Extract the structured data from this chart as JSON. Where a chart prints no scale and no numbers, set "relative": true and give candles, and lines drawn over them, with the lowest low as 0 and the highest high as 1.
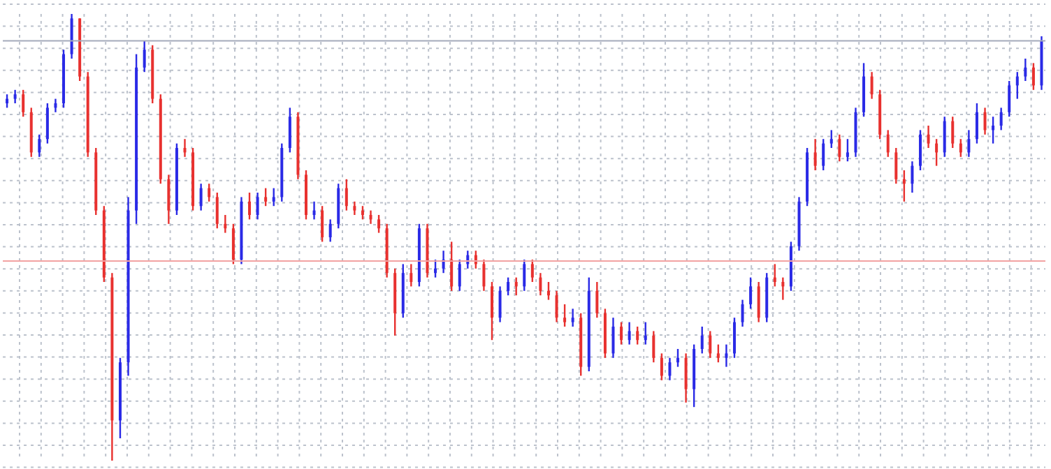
{
  "chart_data": {
    "type": "candlestick",
    "relative": true,
    "grid": true,
    "categories": [
      null,
      null,
      null,
      null,
      null,
      null,
      null,
      null,
      null,
      null,
      null,
      null,
      null,
      null,
      null,
      null,
      null,
      null,
      null,
      null,
      null,
      null,
      null,
      null,
      null,
      null,
      null,
      null,
      null,
      null,
      null,
      null,
      null,
      null,
      null,
      null,
      null,
      null,
      null,
      null,
      null,
      null,
      null,
      null,
      null,
      null,
      null,
      null,
      null,
      null,
      null,
      null,
      null,
      null,
      null,
      null,
      null,
      null,
      null,
      null,
      null,
      null,
      null,
      null,
      null,
      null,
      null,
      null,
      null,
      null,
      null,
      null,
      null,
      null,
      null,
      null,
      null,
      null,
      null,
      null,
      null,
      null,
      null,
      null,
      null,
      null,
      null,
      null,
      null,
      null,
      null,
      null,
      null,
      null,
      null,
      null,
      null,
      null,
      null,
      null,
      null,
      null,
      null,
      null,
      null,
      null,
      null,
      null,
      null,
      null,
      null,
      null,
      null,
      null,
      null,
      null,
      null,
      null,
      null,
      null,
      null,
      null,
      null,
      null,
      null,
      null,
      null,
      null,
      null
    ],
    "ohlc": [
      [
        0.8,
        0.82,
        0.79,
        0.81
      ],
      [
        0.81,
        0.83,
        0.8,
        0.82
      ],
      [
        0.82,
        0.83,
        0.77,
        0.78
      ],
      [
        0.78,
        0.79,
        0.68,
        0.69
      ],
      [
        0.69,
        0.73,
        0.68,
        0.72
      ],
      [
        0.72,
        0.8,
        0.71,
        0.79
      ],
      [
        0.79,
        0.81,
        0.78,
        0.8
      ],
      [
        0.8,
        0.92,
        0.79,
        0.91
      ],
      [
        0.91,
        1,
        0.9,
        0.99
      ],
      [
        0.99,
        0.99,
        0.85,
        0.86
      ],
      [
        0.86,
        0.87,
        0.68,
        0.69
      ],
      [
        0.69,
        0.7,
        0.55,
        0.56
      ],
      [
        0.56,
        0.57,
        0.4,
        0.41
      ],
      [
        0.41,
        0.42,
        0,
        0.09
      ],
      [
        0.09,
        0.23,
        0.05,
        0.22
      ],
      [
        0.22,
        0.59,
        0.19,
        0.56
      ],
      [
        0.56,
        0.91,
        0.53,
        0.88
      ],
      [
        0.88,
        0.94,
        0.87,
        0.92
      ],
      [
        0.92,
        0.93,
        0.8,
        0.81
      ],
      [
        0.81,
        0.82,
        0.62,
        0.63
      ],
      [
        0.63,
        0.64,
        0.53,
        0.56
      ],
      [
        0.56,
        0.71,
        0.55,
        0.7
      ],
      [
        0.7,
        0.72,
        0.68,
        0.69
      ],
      [
        0.69,
        0.7,
        0.56,
        0.57
      ],
      [
        0.57,
        0.62,
        0.56,
        0.61
      ],
      [
        0.61,
        0.62,
        0.58,
        0.59
      ],
      [
        0.59,
        0.6,
        0.52,
        0.53
      ],
      [
        0.53,
        0.55,
        0.51,
        0.52
      ],
      [
        0.52,
        0.53,
        0.44,
        0.45
      ],
      [
        0.45,
        0.59,
        0.44,
        0.58
      ],
      [
        0.58,
        0.6,
        0.54,
        0.55
      ],
      [
        0.55,
        0.6,
        0.54,
        0.59
      ],
      [
        0.59,
        0.61,
        0.57,
        0.58
      ],
      [
        0.58,
        0.61,
        0.57,
        0.59
      ],
      [
        0.59,
        0.71,
        0.58,
        0.7
      ],
      [
        0.7,
        0.79,
        0.69,
        0.77
      ],
      [
        0.77,
        0.78,
        0.63,
        0.64
      ],
      [
        0.64,
        0.65,
        0.54,
        0.55
      ],
      [
        0.55,
        0.58,
        0.54,
        0.56
      ],
      [
        0.56,
        0.57,
        0.49,
        0.5
      ],
      [
        0.5,
        0.54,
        0.49,
        0.53
      ],
      [
        0.53,
        0.62,
        0.52,
        0.61
      ],
      [
        0.61,
        0.63,
        0.56,
        0.57
      ],
      [
        0.57,
        0.58,
        0.55,
        0.56
      ],
      [
        0.56,
        0.57,
        0.54,
        0.55
      ],
      [
        0.55,
        0.56,
        0.53,
        0.54
      ],
      [
        0.54,
        0.55,
        0.51,
        0.52
      ],
      [
        0.52,
        0.53,
        0.41,
        0.42
      ],
      [
        0.42,
        0.43,
        0.28,
        0.33
      ],
      [
        0.33,
        0.44,
        0.32,
        0.42
      ],
      [
        0.42,
        0.44,
        0.39,
        0.4
      ],
      [
        0.4,
        0.53,
        0.39,
        0.52
      ],
      [
        0.52,
        0.53,
        0.41,
        0.42
      ],
      [
        0.42,
        0.45,
        0.41,
        0.43
      ],
      [
        0.43,
        0.47,
        0.42,
        0.45
      ],
      [
        0.45,
        0.49,
        0.38,
        0.39
      ],
      [
        0.39,
        0.45,
        0.38,
        0.44
      ],
      [
        0.44,
        0.47,
        0.43,
        0.46
      ],
      [
        0.46,
        0.47,
        0.43,
        0.44
      ],
      [
        0.44,
        0.45,
        0.38,
        0.39
      ],
      [
        0.39,
        0.4,
        0.27,
        0.32
      ],
      [
        0.32,
        0.39,
        0.31,
        0.38
      ],
      [
        0.38,
        0.41,
        0.37,
        0.4
      ],
      [
        0.4,
        0.41,
        0.37,
        0.39
      ],
      [
        0.39,
        0.45,
        0.38,
        0.44
      ],
      [
        0.44,
        0.45,
        0.4,
        0.41
      ],
      [
        0.41,
        0.42,
        0.37,
        0.38
      ],
      [
        0.38,
        0.4,
        0.36,
        0.37
      ],
      [
        0.37,
        0.38,
        0.31,
        0.32
      ],
      [
        0.32,
        0.35,
        0.3,
        0.31
      ],
      [
        0.31,
        0.34,
        0.3,
        0.32
      ],
      [
        0.32,
        0.33,
        0.19,
        0.21
      ],
      [
        0.21,
        0.41,
        0.2,
        0.38
      ],
      [
        0.38,
        0.4,
        0.32,
        0.33
      ],
      [
        0.33,
        0.34,
        0.23,
        0.24
      ],
      [
        0.24,
        0.32,
        0.23,
        0.3
      ],
      [
        0.3,
        0.31,
        0.26,
        0.27
      ],
      [
        0.27,
        0.31,
        0.26,
        0.29
      ],
      [
        0.29,
        0.3,
        0.26,
        0.27
      ],
      [
        0.27,
        0.31,
        0.26,
        0.28
      ],
      [
        0.28,
        0.29,
        0.22,
        0.23
      ],
      [
        0.23,
        0.24,
        0.18,
        0.19
      ],
      [
        0.19,
        0.23,
        0.18,
        0.22
      ],
      [
        0.22,
        0.25,
        0.21,
        0.23
      ],
      [
        0.23,
        0.24,
        0.13,
        0.16
      ],
      [
        0.16,
        0.26,
        0.12,
        0.25
      ],
      [
        0.25,
        0.3,
        0.24,
        0.28
      ],
      [
        0.28,
        0.29,
        0.23,
        0.24
      ],
      [
        0.24,
        0.26,
        0.22,
        0.23
      ],
      [
        0.23,
        0.26,
        0.21,
        0.24
      ],
      [
        0.24,
        0.32,
        0.23,
        0.31
      ],
      [
        0.31,
        0.36,
        0.3,
        0.35
      ],
      [
        0.35,
        0.41,
        0.34,
        0.39
      ],
      [
        0.39,
        0.4,
        0.31,
        0.32
      ],
      [
        0.32,
        0.42,
        0.31,
        0.41
      ],
      [
        0.41,
        0.44,
        0.39,
        0.4
      ],
      [
        0.4,
        0.41,
        0.36,
        0.39
      ],
      [
        0.39,
        0.49,
        0.38,
        0.48
      ],
      [
        0.48,
        0.59,
        0.47,
        0.58
      ],
      [
        0.58,
        0.7,
        0.57,
        0.69
      ],
      [
        0.69,
        0.72,
        0.65,
        0.66
      ],
      [
        0.66,
        0.72,
        0.65,
        0.71
      ],
      [
        0.71,
        0.74,
        0.7,
        0.72
      ],
      [
        0.72,
        0.73,
        0.67,
        0.68
      ],
      [
        0.68,
        0.72,
        0.67,
        0.69
      ],
      [
        0.69,
        0.79,
        0.68,
        0.78
      ],
      [
        0.78,
        0.89,
        0.77,
        0.86
      ],
      [
        0.86,
        0.87,
        0.81,
        0.82
      ],
      [
        0.82,
        0.83,
        0.72,
        0.73
      ],
      [
        0.73,
        0.74,
        0.68,
        0.69
      ],
      [
        0.69,
        0.7,
        0.62,
        0.63
      ],
      [
        0.63,
        0.65,
        0.58,
        0.62
      ],
      [
        0.62,
        0.67,
        0.6,
        0.66
      ],
      [
        0.66,
        0.74,
        0.65,
        0.73
      ],
      [
        0.73,
        0.75,
        0.7,
        0.71
      ],
      [
        0.71,
        0.72,
        0.66,
        0.69
      ],
      [
        0.69,
        0.77,
        0.68,
        0.76
      ],
      [
        0.76,
        0.77,
        0.7,
        0.71
      ],
      [
        0.71,
        0.72,
        0.68,
        0.69
      ],
      [
        0.69,
        0.74,
        0.68,
        0.72
      ],
      [
        0.72,
        0.8,
        0.71,
        0.78
      ],
      [
        0.78,
        0.79,
        0.73,
        0.74
      ],
      [
        0.74,
        0.77,
        0.71,
        0.75
      ],
      [
        0.75,
        0.79,
        0.74,
        0.78
      ],
      [
        0.78,
        0.85,
        0.77,
        0.84
      ],
      [
        0.84,
        0.87,
        0.81,
        0.86
      ],
      [
        0.86,
        0.9,
        0.85,
        0.88
      ],
      [
        0.88,
        0.89,
        0.83,
        0.84
      ],
      [
        0.84,
        0.95,
        0.83,
        0.94
      ]
    ],
    "colors": [
      "#2a2ae6",
      "#2a2ae6",
      "#e8312f",
      "#e8312f",
      "#2a2ae6",
      "#2a2ae6",
      "#2a2ae6",
      "#2a2ae6",
      "#2a2ae6",
      "#e8312f",
      "#e8312f",
      "#e8312f",
      "#e8312f",
      "#e8312f",
      "#2a2ae6",
      "#2a2ae6",
      "#2a2ae6",
      "#2a2ae6",
      "#e8312f",
      "#e8312f",
      "#e8312f",
      "#2a2ae6",
      "#e8312f",
      "#e8312f",
      "#2a2ae6",
      "#e8312f",
      "#e8312f",
      "#e8312f",
      "#e8312f",
      "#2a2ae6",
      "#e8312f",
      "#2a2ae6",
      "#e8312f",
      "#2a2ae6",
      "#2a2ae6",
      "#2a2ae6",
      "#e8312f",
      "#e8312f",
      "#2a2ae6",
      "#e8312f",
      "#2a2ae6",
      "#2a2ae6",
      "#e8312f",
      "#e8312f",
      "#e8312f",
      "#e8312f",
      "#e8312f",
      "#e8312f",
      "#e8312f",
      "#2a2ae6",
      "#e8312f",
      "#2a2ae6",
      "#e8312f",
      "#2a2ae6",
      "#2a2ae6",
      "#e8312f",
      "#2a2ae6",
      "#2a2ae6",
      "#e8312f",
      "#e8312f",
      "#e8312f",
      "#2a2ae6",
      "#2a2ae6",
      "#e8312f",
      "#2a2ae6",
      "#e8312f",
      "#e8312f",
      "#e8312f",
      "#e8312f",
      "#e8312f",
      "#2a2ae6",
      "#e8312f",
      "#2a2ae6",
      "#e8312f",
      "#e8312f",
      "#2a2ae6",
      "#e8312f",
      "#2a2ae6",
      "#e8312f",
      "#2a2ae6",
      "#e8312f",
      "#e8312f",
      "#2a2ae6",
      "#2a2ae6",
      "#e8312f",
      "#2a2ae6",
      "#2a2ae6",
      "#e8312f",
      "#e8312f",
      "#2a2ae6",
      "#2a2ae6",
      "#2a2ae6",
      "#2a2ae6",
      "#e8312f",
      "#2a2ae6",
      "#e8312f",
      "#e8312f",
      "#2a2ae6",
      "#2a2ae6",
      "#2a2ae6",
      "#e8312f",
      "#2a2ae6",
      "#2a2ae6",
      "#e8312f",
      "#2a2ae6",
      "#2a2ae6",
      "#2a2ae6",
      "#e8312f",
      "#e8312f",
      "#e8312f",
      "#e8312f",
      "#e8312f",
      "#2a2ae6",
      "#2a2ae6",
      "#e8312f",
      "#e8312f",
      "#2a2ae6",
      "#e8312f",
      "#e8312f",
      "#2a2ae6",
      "#2a2ae6",
      "#e8312f",
      "#2a2ae6",
      "#2a2ae6",
      "#2a2ae6",
      "#2a2ae6",
      "#2a2ae6",
      "#e8312f",
      "#2a2ae6"
    ],
    "ref_lines": [
      {
        "axis": "y",
        "value": 0.94,
        "color": "#a4aabb"
      },
      {
        "axis": "y",
        "value": 0.447,
        "color": "#f2a2a2"
      }
    ]
  }
}
